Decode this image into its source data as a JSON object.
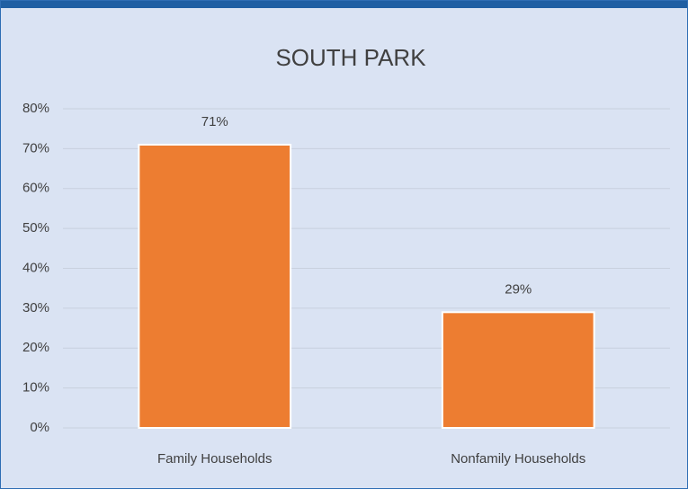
{
  "chart_data": {
    "type": "bar",
    "title": "SOUTH PARK",
    "categories": [
      "Family Households",
      "Nonfamily Households"
    ],
    "values": [
      71,
      29
    ],
    "value_labels": [
      "71%",
      "29%"
    ],
    "color": "#ed7d31",
    "ylim": [
      0,
      80
    ],
    "yticks": [
      {
        "value": 0,
        "label": "0%"
      },
      {
        "value": 10,
        "label": "10%"
      },
      {
        "value": 20,
        "label": "20%"
      },
      {
        "value": 30,
        "label": "30%"
      },
      {
        "value": 40,
        "label": "40%"
      },
      {
        "value": 50,
        "label": "50%"
      },
      {
        "value": 60,
        "label": "60%"
      },
      {
        "value": 70,
        "label": "70%"
      },
      {
        "value": 80,
        "label": "80%"
      }
    ],
    "grid": true
  }
}
